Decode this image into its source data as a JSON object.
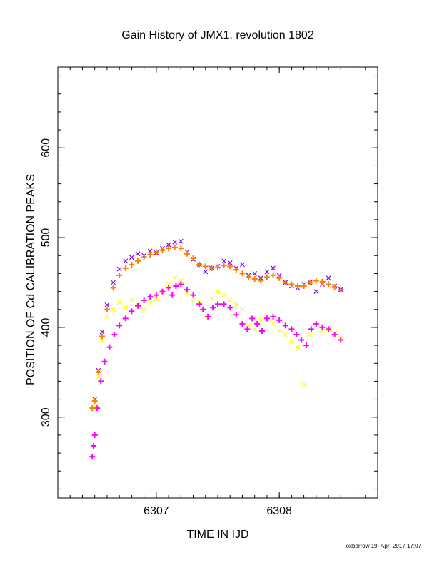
{
  "chart_data": {
    "type": "scatter",
    "title": "Gain History of JMX1, revolution 1802",
    "xlabel": "TIME IN IJD",
    "ylabel": "POSITION OF Cd CALIBRATION PEAKS",
    "xlim": [
      6306.2,
      6308.8
    ],
    "ylim": [
      210,
      690
    ],
    "xticks": [
      6307,
      6308
    ],
    "yticks": [
      300,
      400,
      500,
      600
    ],
    "xtick_labels": [
      "6307",
      "6308"
    ],
    "ytick_labels": [
      "300",
      "400",
      "500",
      "600"
    ],
    "grid": false,
    "legend": "none",
    "series": [
      {
        "marker": "x",
        "color": "#7f00ff",
        "x": [
          6306.5,
          6306.53,
          6306.56,
          6306.6,
          6306.65,
          6306.7,
          6306.75,
          6306.8,
          6306.85,
          6306.9,
          6306.95,
          6307.0,
          6307.05,
          6307.1,
          6307.15,
          6307.2,
          6307.25,
          6307.3,
          6307.35,
          6307.4,
          6307.45,
          6307.5,
          6307.55,
          6307.6,
          6307.65,
          6307.7,
          6307.75,
          6307.8,
          6307.85,
          6307.9,
          6307.95,
          6308.0,
          6308.05,
          6308.1,
          6308.15,
          6308.2,
          6308.25,
          6308.3,
          6308.35,
          6308.4,
          6308.45,
          6308.5
        ],
        "y": [
          320,
          352,
          395,
          425,
          450,
          465,
          474,
          478,
          482,
          480,
          485,
          483,
          488,
          492,
          495,
          496,
          484,
          476,
          470,
          462,
          466,
          468,
          474,
          472,
          466,
          470,
          458,
          460,
          455,
          462,
          466,
          458,
          450,
          446,
          444,
          448,
          450,
          440,
          448,
          455,
          446,
          442
        ]
      },
      {
        "marker": "x",
        "color": "#ffff00",
        "x": [
          6306.5,
          6306.53,
          6306.56,
          6306.6,
          6306.65,
          6306.7,
          6306.75,
          6306.8,
          6306.85,
          6306.9,
          6306.95,
          6307.0,
          6307.05,
          6307.1,
          6307.15,
          6307.2,
          6307.25,
          6307.3,
          6307.35,
          6307.4,
          6307.45,
          6307.5,
          6307.55,
          6307.6,
          6307.65,
          6307.7,
          6307.75,
          6307.8,
          6307.85,
          6307.9,
          6307.95,
          6308.0,
          6308.05,
          6308.1,
          6308.15,
          6308.2,
          6308.25,
          6308.3,
          6308.35,
          6308.4,
          6308.45,
          6308.5
        ],
        "y": [
          312,
          345,
          385,
          412,
          420,
          428,
          422,
          430,
          425,
          420,
          428,
          432,
          440,
          448,
          455,
          452,
          438,
          430,
          428,
          412,
          432,
          440,
          436,
          430,
          425,
          420,
          402,
          398,
          408,
          412,
          404,
          396,
          392,
          384,
          378,
          336,
          392,
          402,
          396,
          398,
          394,
          388
        ]
      },
      {
        "marker": "+",
        "color": "#ff00ff",
        "x": [
          6306.48,
          6306.49,
          6306.5,
          6306.52,
          6306.55,
          6306.58,
          6306.62,
          6306.66,
          6306.7,
          6306.75,
          6306.8,
          6306.85,
          6306.9,
          6306.95,
          6307.0,
          6307.05,
          6307.1,
          6307.13,
          6307.16,
          6307.2,
          6307.25,
          6307.3,
          6307.35,
          6307.38,
          6307.42,
          6307.46,
          6307.5,
          6307.55,
          6307.6,
          6307.65,
          6307.7,
          6307.74,
          6307.78,
          6307.82,
          6307.86,
          6307.9,
          6307.95,
          6308.0,
          6308.05,
          6308.1,
          6308.14,
          6308.18,
          6308.22,
          6308.26,
          6308.3,
          6308.35,
          6308.4,
          6308.45,
          6308.5
        ],
        "y": [
          256,
          268,
          280,
          310,
          340,
          362,
          378,
          392,
          402,
          410,
          418,
          424,
          430,
          434,
          436,
          440,
          444,
          436,
          446,
          448,
          442,
          436,
          426,
          420,
          412,
          422,
          426,
          426,
          422,
          414,
          404,
          398,
          410,
          404,
          396,
          410,
          412,
          408,
          402,
          398,
          392,
          386,
          380,
          398,
          404,
          400,
          398,
          392,
          386
        ]
      },
      {
        "marker": "+",
        "color": "#ff7f00",
        "x": [
          6306.48,
          6306.5,
          6306.53,
          6306.56,
          6306.6,
          6306.65,
          6306.7,
          6306.75,
          6306.8,
          6306.85,
          6306.9,
          6306.95,
          6307.0,
          6307.05,
          6307.1,
          6307.15,
          6307.2,
          6307.25,
          6307.3,
          6307.35,
          6307.4,
          6307.45,
          6307.5,
          6307.55,
          6307.6,
          6307.65,
          6307.7,
          6307.75,
          6307.8,
          6307.85,
          6307.9,
          6307.95,
          6308.0,
          6308.05,
          6308.1,
          6308.15,
          6308.2,
          6308.25,
          6308.3,
          6308.35,
          6308.4,
          6308.45,
          6308.5
        ],
        "y": [
          310,
          318,
          350,
          390,
          420,
          444,
          458,
          466,
          470,
          474,
          478,
          481,
          484,
          486,
          488,
          489,
          488,
          482,
          477,
          470,
          468,
          466,
          467,
          469,
          468,
          464,
          460,
          456,
          454,
          452,
          456,
          458,
          455,
          450,
          448,
          446,
          446,
          450,
          452,
          451,
          448,
          445,
          442
        ]
      }
    ]
  },
  "footer": {
    "credit": "oxborrow 19–Apr–2017 17:07"
  }
}
